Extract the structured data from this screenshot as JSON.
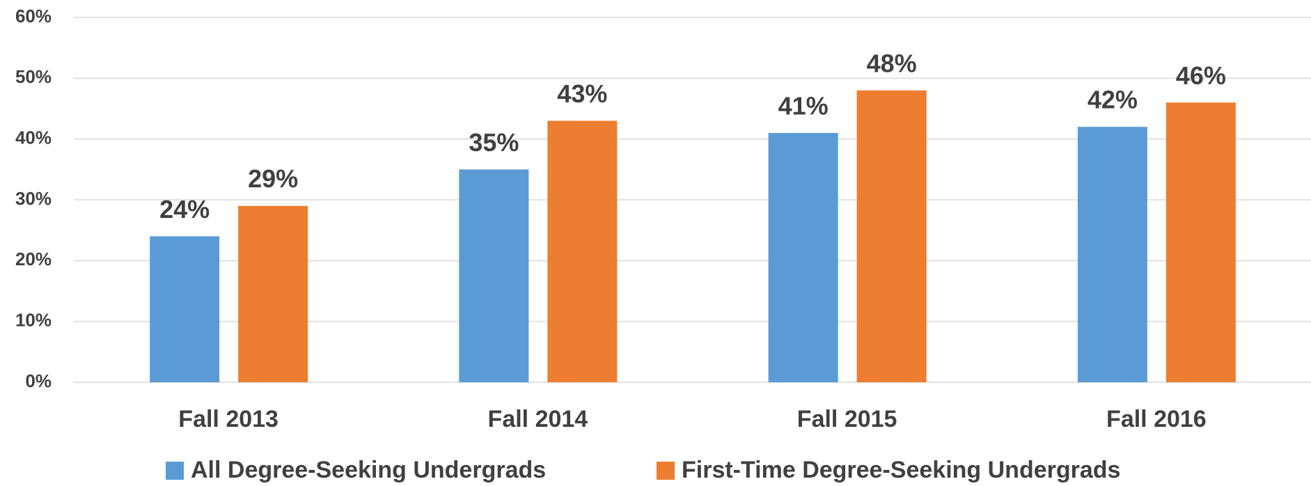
{
  "chart_data": {
    "type": "bar",
    "categories": [
      "Fall 2013",
      "Fall 2014",
      "Fall 2015",
      "Fall 2016"
    ],
    "series": [
      {
        "name": "All Degree-Seeking Undergrads",
        "color": "#5b9bd5",
        "values": [
          24,
          35,
          41,
          42
        ],
        "value_labels": [
          "24%",
          "35%",
          "41%",
          "42%"
        ]
      },
      {
        "name": "First-Time Degree-Seeking Undergrads",
        "color": "#ed7d31",
        "values": [
          29,
          43,
          48,
          46
        ],
        "value_labels": [
          "29%",
          "43%",
          "48%",
          "46%"
        ]
      }
    ],
    "ylim": [
      0,
      60
    ],
    "yticks": [
      {
        "value": 0,
        "label": "0%"
      },
      {
        "value": 10,
        "label": "10%"
      },
      {
        "value": 20,
        "label": "20%"
      },
      {
        "value": 30,
        "label": "30%"
      },
      {
        "value": 40,
        "label": "40%"
      },
      {
        "value": 50,
        "label": "50%"
      },
      {
        "value": 60,
        "label": "60%"
      }
    ],
    "grid": true,
    "legend": "bottom"
  }
}
